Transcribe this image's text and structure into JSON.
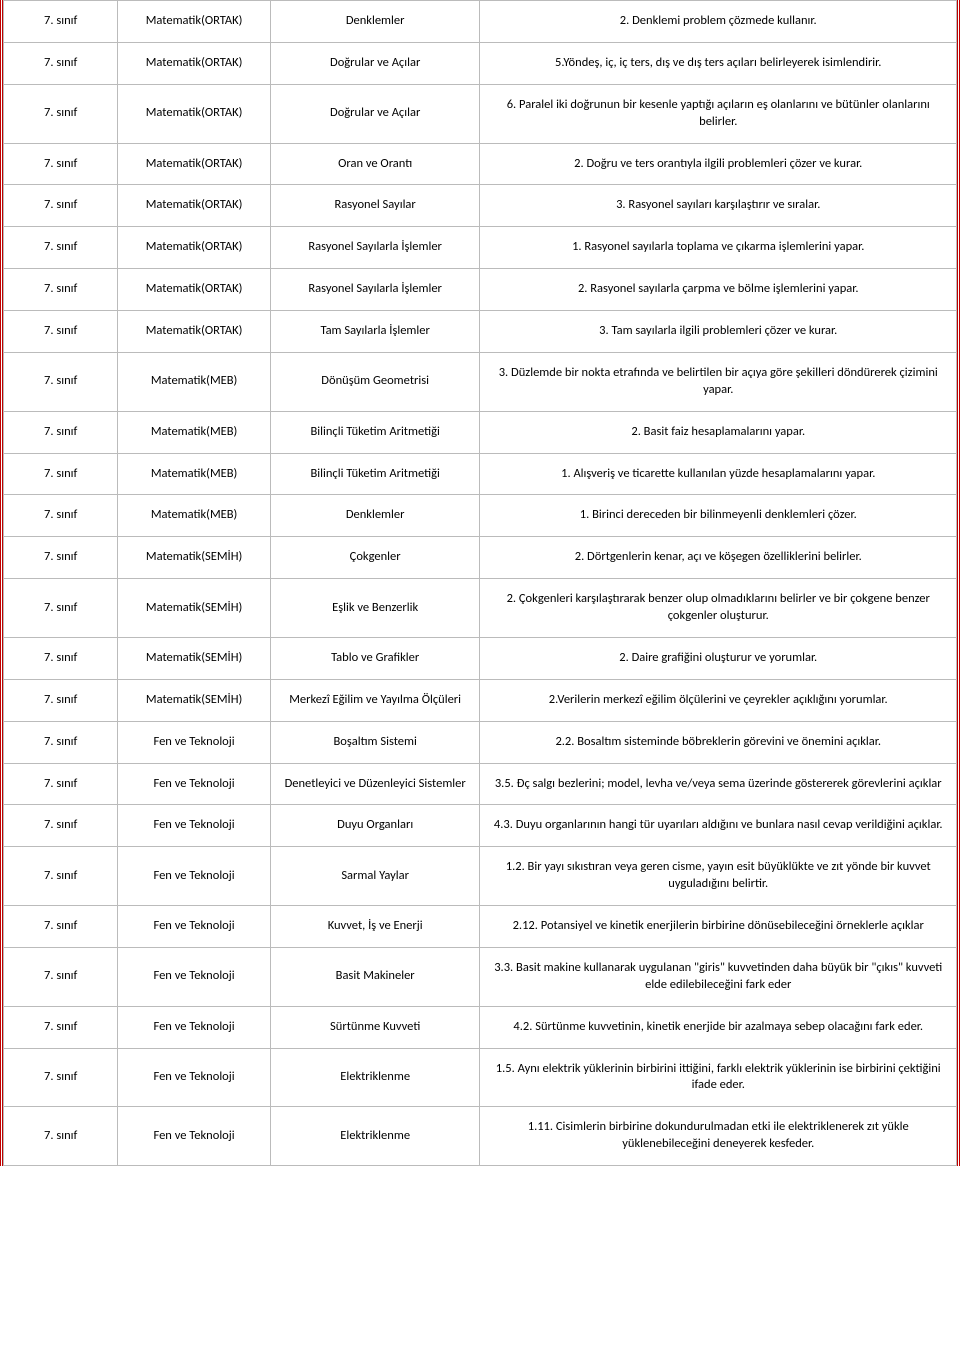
{
  "table": {
    "columns": [
      "grade",
      "subject",
      "topic",
      "objective"
    ],
    "col_widths_pct": [
      12,
      16,
      22,
      50
    ],
    "border_color": "#bbbbbb",
    "outer_border_color": "#c00000",
    "background_color": "#ffffff",
    "font_family": "Calibri",
    "font_size_pt": 10,
    "text_color": "#000000",
    "rows": [
      {
        "grade": "7. sınıf",
        "subject": "Matematik(ORTAK)",
        "topic": "Denklemler",
        "objective": "2. Denklemi problem çözmede kullanır."
      },
      {
        "grade": "7. sınıf",
        "subject": "Matematik(ORTAK)",
        "topic": "Doğrular ve Açılar",
        "objective": "5.Yöndeş, iç, iç ters, dış ve dış ters açıları belirleyerek isimlendirir."
      },
      {
        "grade": "7. sınıf",
        "subject": "Matematik(ORTAK)",
        "topic": "Doğrular ve Açılar",
        "objective": "6. Paralel iki doğrunun bir kesenle yaptığı açıların eş olanlarını ve bütünler olanlarını belirler."
      },
      {
        "grade": "7. sınıf",
        "subject": "Matematik(ORTAK)",
        "topic": "Oran ve Orantı",
        "objective": "2. Doğru ve ters orantıyla ilgili problemleri çözer ve kurar."
      },
      {
        "grade": "7. sınıf",
        "subject": "Matematik(ORTAK)",
        "topic": "Rasyonel Sayılar",
        "objective": "3. Rasyonel sayıları karşılaştırır ve sıralar."
      },
      {
        "grade": "7. sınıf",
        "subject": "Matematik(ORTAK)",
        "topic": "Rasyonel Sayılarla İşlemler",
        "objective": "1. Rasyonel sayılarla toplama ve çıkarma işlemlerini yapar."
      },
      {
        "grade": "7. sınıf",
        "subject": "Matematik(ORTAK)",
        "topic": "Rasyonel Sayılarla İşlemler",
        "objective": "2. Rasyonel sayılarla çarpma ve bölme işlemlerini yapar."
      },
      {
        "grade": "7. sınıf",
        "subject": "Matematik(ORTAK)",
        "topic": "Tam Sayılarla İşlemler",
        "objective": "3. Tam sayılarla ilgili problemleri çözer ve kurar."
      },
      {
        "grade": "7. sınıf",
        "subject": "Matematik(MEB)",
        "topic": "Dönüşüm Geometrisi",
        "objective": "3. Düzlemde bir nokta etrafında ve belirtilen bir açıya göre şekilleri döndürerek çizimini yapar."
      },
      {
        "grade": "7. sınıf",
        "subject": "Matematik(MEB)",
        "topic": "Bilinçli Tüketim Aritmetiği",
        "objective": "2. Basit faiz hesaplamalarını yapar."
      },
      {
        "grade": "7. sınıf",
        "subject": "Matematik(MEB)",
        "topic": "Bilinçli Tüketim Aritmetiği",
        "objective": "1. Alışveriş ve ticarette kullanılan yüzde hesaplamalarını yapar."
      },
      {
        "grade": "7. sınıf",
        "subject": "Matematik(MEB)",
        "topic": "Denklemler",
        "objective": "1. Birinci dereceden bir bilinmeyenli denklemleri çözer."
      },
      {
        "grade": "7. sınıf",
        "subject": "Matematik(SEMİH)",
        "topic": "Çokgenler",
        "objective": "2. Dörtgenlerin kenar, açı ve köşegen özelliklerini belirler."
      },
      {
        "grade": "7. sınıf",
        "subject": "Matematik(SEMİH)",
        "topic": "Eşlik ve Benzerlik",
        "objective": "2. Çokgenleri karşılaştırarak benzer olup olmadıklarını belirler ve bir çokgene benzer çokgenler oluşturur."
      },
      {
        "grade": "7. sınıf",
        "subject": "Matematik(SEMİH)",
        "topic": "Tablo ve Grafikler",
        "objective": "2. Daire grafiğini oluşturur ve yorumlar."
      },
      {
        "grade": "7. sınıf",
        "subject": "Matematik(SEMİH)",
        "topic": "Merkezî Eğilim ve Yayılma Ölçüleri",
        "objective": "2.Verilerin merkezî eğilim ölçülerini ve çeyrekler açıklığını yorumlar."
      },
      {
        "grade": "7. sınıf",
        "subject": "Fen ve Teknoloji",
        "topic": "Boşaltım Sistemi",
        "objective": "2.2. Bosaltım sisteminde böbreklerin görevini ve önemini açıklar."
      },
      {
        "grade": "7. sınıf",
        "subject": "Fen ve Teknoloji",
        "topic": "Denetleyici ve Düzenleyici Sistemler",
        "objective": "3.5. Đç salgı bezlerini; model, levha ve/veya sema üzerinde göstererek görevlerini açıklar"
      },
      {
        "grade": "7. sınıf",
        "subject": "Fen ve Teknoloji",
        "topic": "Duyu Organları",
        "objective": "4.3. Duyu organlarının hangi tür uyarıları aldığını ve bunlara nasıl cevap verildiğini açıklar."
      },
      {
        "grade": "7. sınıf",
        "subject": "Fen ve Teknoloji",
        "topic": "Sarmal Yaylar",
        "objective": "1.2. Bir yayı sıkıstıran veya geren cisme, yayın esit büyüklükte ve zıt yönde bir kuvvet uyguladığını belirtir."
      },
      {
        "grade": "7. sınıf",
        "subject": "Fen ve Teknoloji",
        "topic": "Kuvvet, İş ve Enerji",
        "objective": "2.12. Potansiyel ve kinetik enerjilerin birbirine dönüsebileceğini örneklerle açıklar"
      },
      {
        "grade": "7. sınıf",
        "subject": "Fen ve Teknoloji",
        "topic": "Basit Makineler",
        "objective": "3.3. Basit makine kullanarak uygulanan \"giris\" kuvvetinden daha büyük bir \"çıkıs\" kuvveti elde edilebileceğini fark eder"
      },
      {
        "grade": "7. sınıf",
        "subject": "Fen ve Teknoloji",
        "topic": "Sürtünme Kuvveti",
        "objective": "4.2. Sürtünme kuvvetinin, kinetik enerjide bir azalmaya sebep olacağını fark eder."
      },
      {
        "grade": "7. sınıf",
        "subject": "Fen ve Teknoloji",
        "topic": "Elektriklenme",
        "objective": "1.5. Aynı elektrik yüklerinin birbirini ittiğini, farklı elektrik yüklerinin ise birbirini çektiğini ifade eder."
      },
      {
        "grade": "7. sınıf",
        "subject": "Fen ve Teknoloji",
        "topic": "Elektriklenme",
        "objective": "1.11. Cisimlerin birbirine dokundurulmadan etki ile elektriklenerek zıt yükle yüklenebileceğini deneyerek kesfeder."
      }
    ]
  }
}
